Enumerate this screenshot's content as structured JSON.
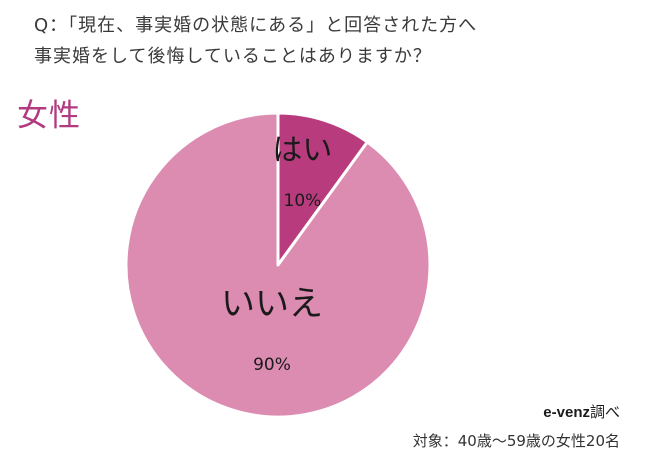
{
  "question": {
    "line1": "Q：「現在、事実婚の状態にある」と回答された方へ",
    "line2": "事実婚をして後悔していることはありますか？"
  },
  "group_label": "女性",
  "source": {
    "brand": "e-venz",
    "suffix": "調べ"
  },
  "target": "対象：40歳〜59歳の女性20名",
  "colors": {
    "yes": "#b83b7e",
    "no": "#dc8bb1",
    "group_label": "#b13a80"
  },
  "chart_data": {
    "type": "pie",
    "labels": [
      "はい",
      "いいえ"
    ],
    "values": [
      10,
      90
    ],
    "value_labels": [
      "10%",
      "90%"
    ],
    "colors": [
      "#b83b7e",
      "#dc8bb1"
    ],
    "start": "12 o'clock",
    "direction": "clockwise"
  }
}
